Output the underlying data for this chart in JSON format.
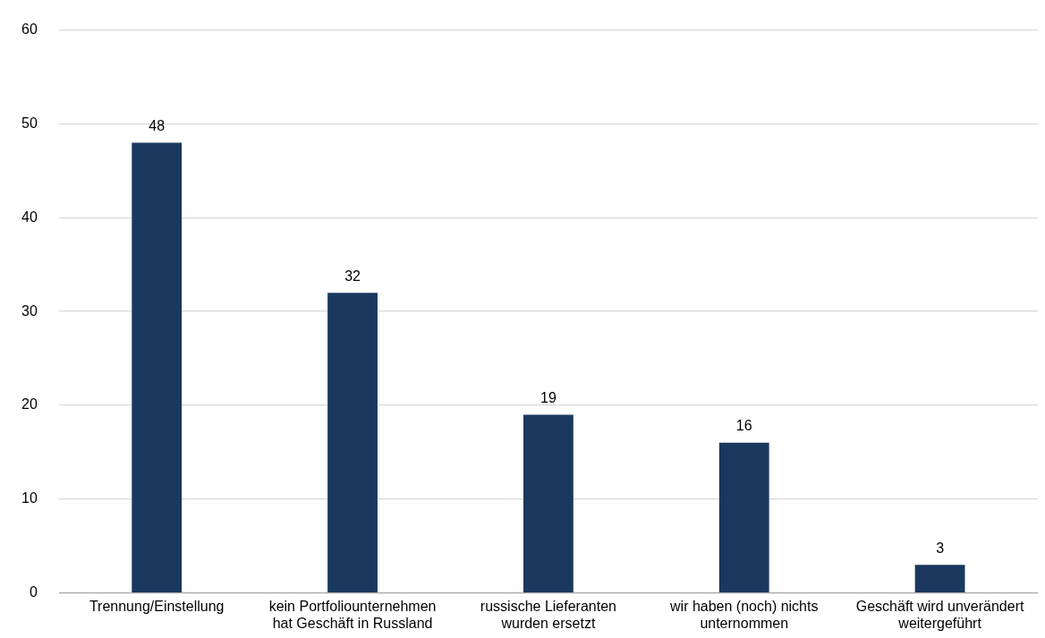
{
  "chart_data": {
    "type": "bar",
    "categories": [
      "Trennung/Einstellung",
      "kein Portfoliounternehmen hat Geschäft in Russland",
      "russische Lieferanten wurden ersetzt",
      "wir haben (noch) nichts unternommen",
      "Geschäft wird unverändert weitergeführt"
    ],
    "values": [
      48,
      32,
      19,
      16,
      3
    ],
    "color": "#1a385e",
    "ylim": [
      0,
      60
    ],
    "yticks": [
      0,
      10,
      20,
      30,
      40,
      50,
      60
    ],
    "grid": "y",
    "legend": false,
    "data_labels": true
  }
}
